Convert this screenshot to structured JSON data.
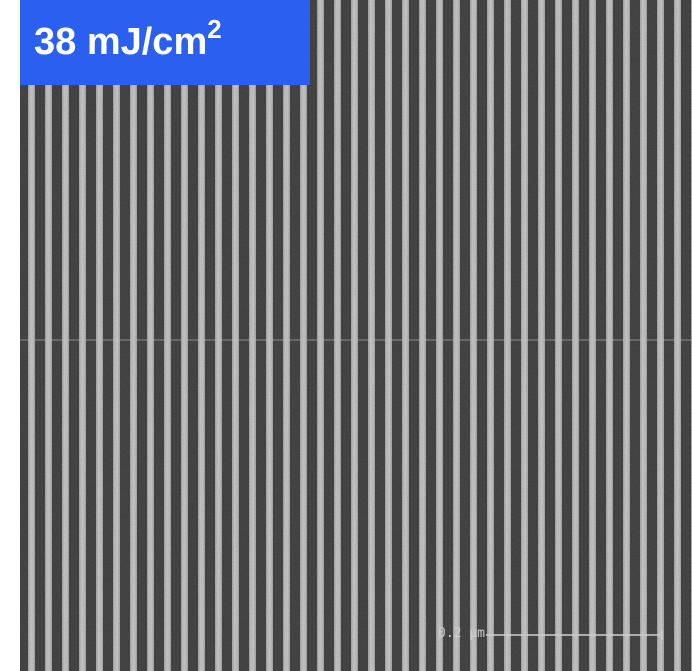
{
  "label": {
    "text": "38 mJ/cm",
    "superscript": "2"
  },
  "scale_bar": "0.2 µm"
}
